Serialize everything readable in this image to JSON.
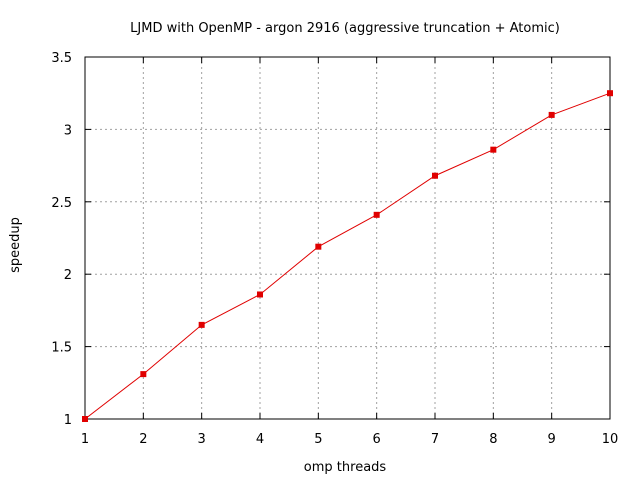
{
  "chart_data": {
    "type": "line",
    "title": "LJMD with OpenMP - argon 2916 (aggressive truncation + Atomic)",
    "xlabel": "omp threads",
    "ylabel": "speedup",
    "xlim": [
      1,
      10
    ],
    "ylim": [
      1,
      3.5
    ],
    "x_ticks": [
      "1",
      "2",
      "3",
      "4",
      "5",
      "6",
      "7",
      "8",
      "9",
      "10"
    ],
    "y_ticks": [
      "1",
      "1.5",
      "2",
      "2.5",
      "3",
      "3.5"
    ],
    "grid": true,
    "legend": "none",
    "series": [
      {
        "color": "#e00000",
        "marker": "square",
        "x": [
          1,
          2,
          3,
          4,
          5,
          6,
          7,
          8,
          9,
          10
        ],
        "values": [
          1.0,
          1.31,
          1.65,
          1.86,
          2.19,
          2.41,
          2.68,
          2.86,
          3.1,
          3.25
        ]
      }
    ]
  }
}
